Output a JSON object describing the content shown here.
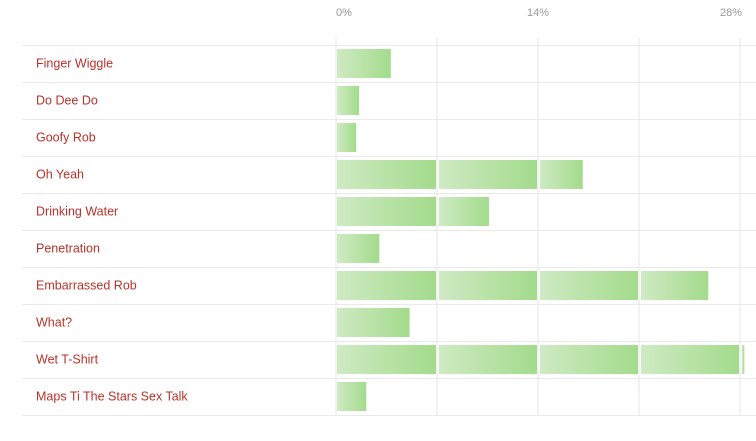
{
  "chart_data": {
    "type": "bar",
    "orientation": "horizontal",
    "categories": [
      "Finger Wiggle",
      "Do Dee Do",
      "Goofy Rob",
      "Oh Yeah",
      "Drinking Water",
      "Penetration",
      "Embarrassed Rob",
      "What?",
      "Wet T-Shirt",
      "Maps Ti The Stars Sex Talk"
    ],
    "values": [
      3.8,
      1.6,
      1.4,
      17.1,
      10.6,
      3.0,
      25.8,
      5.1,
      28.3,
      2.1
    ],
    "unit": "%",
    "xlim": [
      0,
      28
    ],
    "ticks": [
      {
        "value": 0,
        "label": "0%"
      },
      {
        "value": 14,
        "label": "14%"
      },
      {
        "value": 28,
        "label": "28%"
      }
    ],
    "segment_step": 7,
    "grid": true,
    "colors": {
      "bar_light": "#cfeac3",
      "bar_dark": "#a3db8c",
      "label": "#b8322a",
      "tick": "#999999",
      "grid": "#e6e6e6",
      "row_rule": "#e9e9e9"
    }
  }
}
